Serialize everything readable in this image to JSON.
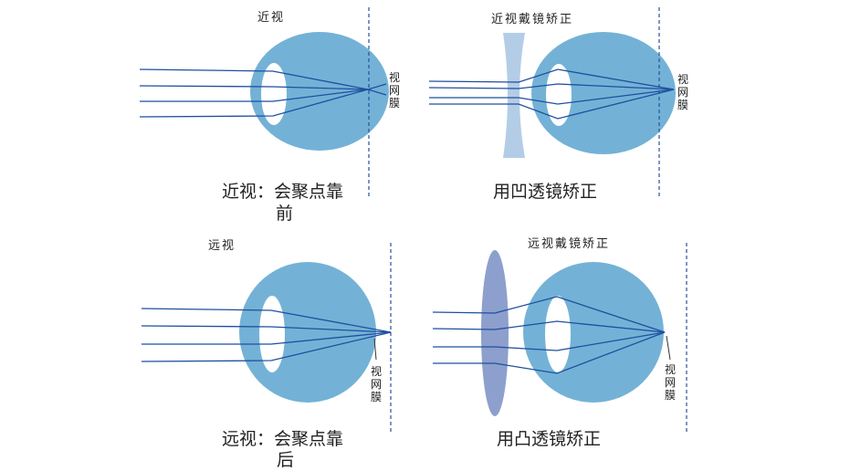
{
  "panels": {
    "myopia": {
      "title": "近视",
      "caption_line1": "近视：会聚点靠",
      "caption_line2": "前",
      "retina_label": "视网膜"
    },
    "myopia_corrected": {
      "title": "近视戴镜矫正",
      "caption": "用凹透镜矫正",
      "retina_label": "视网膜"
    },
    "hyperopia": {
      "title": "远视",
      "caption_line1": "远视：会聚点靠",
      "caption_line2": "后",
      "retina_label": "视网膜"
    },
    "hyperopia_corrected": {
      "title": "远视戴镜矫正",
      "caption": "用凸透镜矫正",
      "retina_label": "视网膜"
    }
  },
  "colors": {
    "eye": "#73b2d6",
    "ray": "#1f4fa0",
    "retina_line": "#2a4f9a",
    "concave_lens": "#b4cde6",
    "convex_lens": "#8d9fcc"
  }
}
